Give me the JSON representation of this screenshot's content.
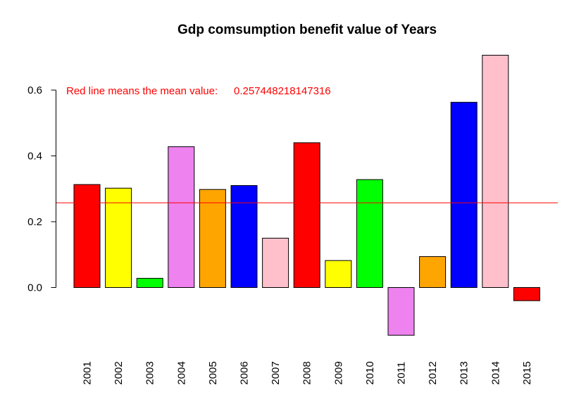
{
  "chart_data": {
    "type": "bar",
    "title": "Gdp comsumption benefit value of Years",
    "xlabel": "",
    "ylabel": "",
    "categories": [
      "2001",
      "2002",
      "2003",
      "2004",
      "2005",
      "2006",
      "2007",
      "2008",
      "2009",
      "2010",
      "2011",
      "2012",
      "2013",
      "2014",
      "2015"
    ],
    "values": [
      0.313,
      0.302,
      0.028,
      0.428,
      0.298,
      0.31,
      0.15,
      0.44,
      0.082,
      0.328,
      -0.145,
      0.094,
      0.563,
      0.706,
      -0.04
    ],
    "bar_colors": [
      "#FF0000",
      "#FFFF00",
      "#00FF00",
      "#EE82EE",
      "#FFA500",
      "#0000FF",
      "#FFC0CB",
      "#FF0000",
      "#FFFF00",
      "#00FF00",
      "#EE82EE",
      "#FFA500",
      "#0000FF",
      "#FFC0CB",
      "#FF0000"
    ],
    "yticks": [
      "0.0",
      "0.2",
      "0.4",
      "0.6"
    ],
    "ylim": [
      -0.16,
      0.72
    ],
    "mean_value": 0.257448218147316,
    "mean_line_color": "#FF0000",
    "annotation": {
      "label": "Red line means the mean value:",
      "value": "0.257448218147316",
      "color": "#FF0000"
    }
  }
}
